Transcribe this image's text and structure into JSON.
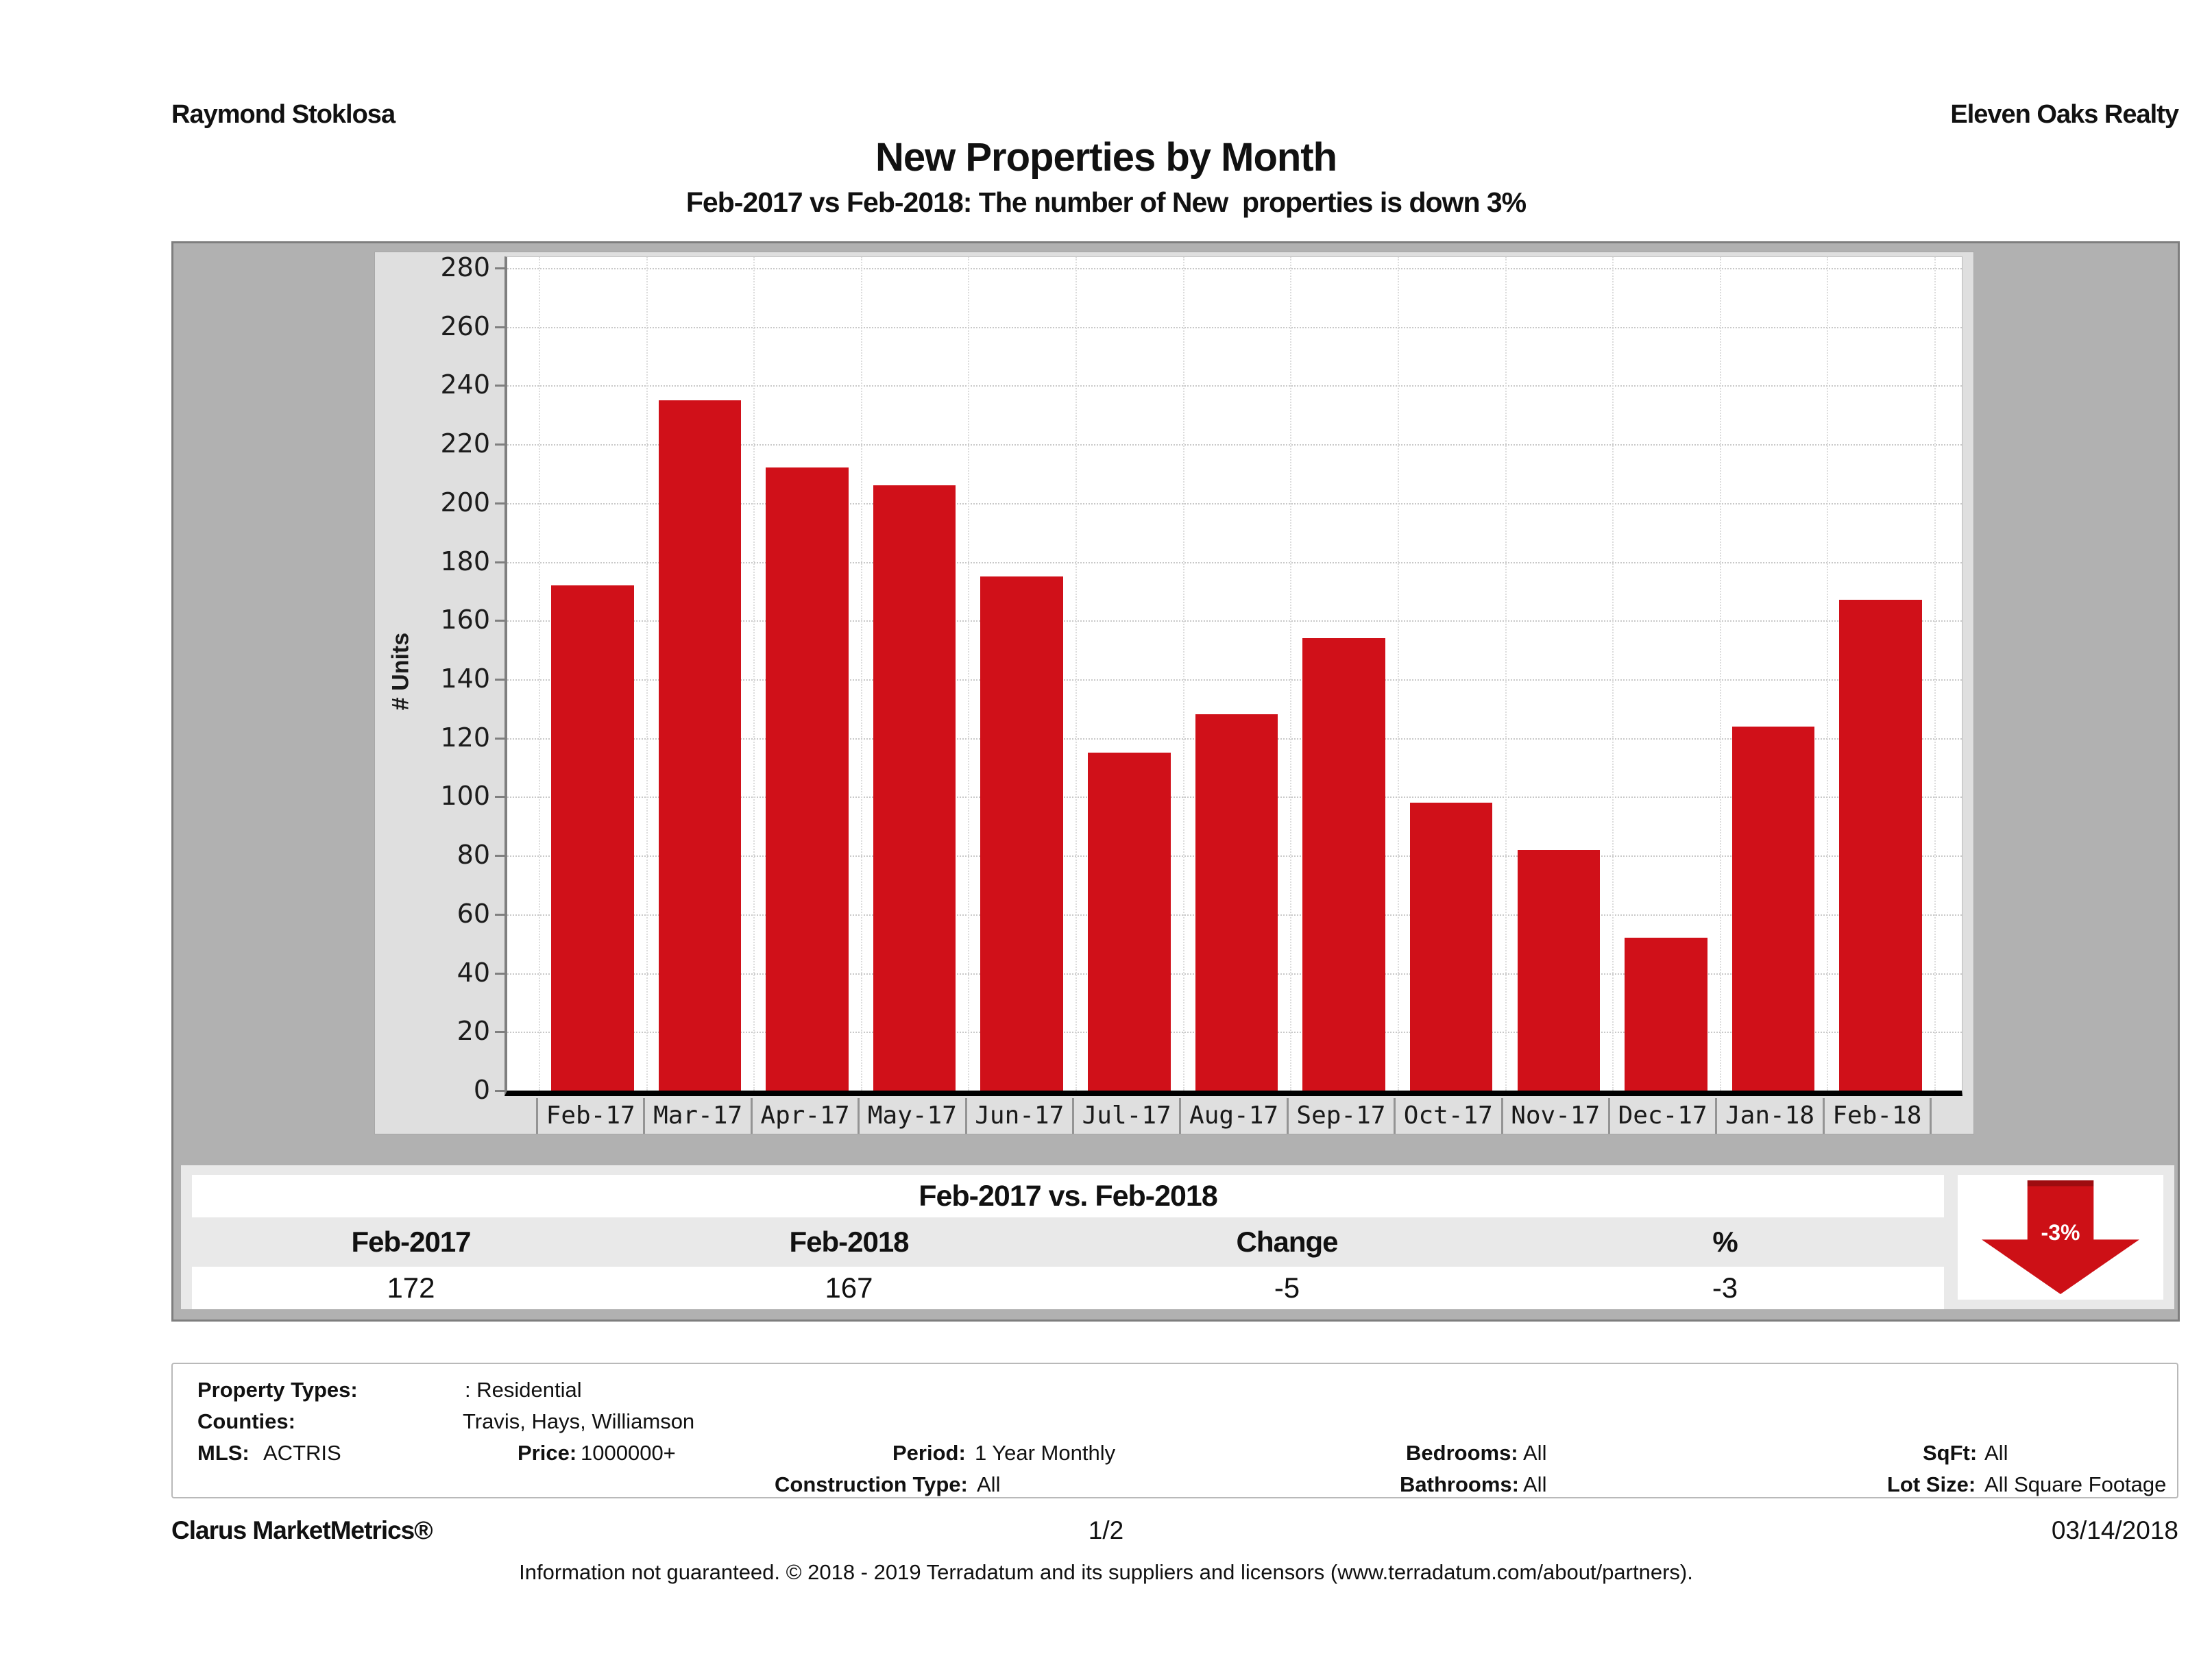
{
  "header": {
    "agent": "Raymond Stoklosa",
    "company": "Eleven Oaks Realty"
  },
  "title": "New Properties by Month",
  "subtitle": "Feb-2017 vs Feb-2018: The number of New  properties is down 3%",
  "chart_data": {
    "type": "bar",
    "title": "New Properties by Month",
    "categories": [
      "Feb-17",
      "Mar-17",
      "Apr-17",
      "May-17",
      "Jun-17",
      "Jul-17",
      "Aug-17",
      "Sep-17",
      "Oct-17",
      "Nov-17",
      "Dec-17",
      "Jan-18",
      "Feb-18"
    ],
    "values": [
      172,
      235,
      212,
      206,
      175,
      115,
      128,
      154,
      98,
      82,
      52,
      124,
      167
    ],
    "xlabel": "",
    "ylabel": "# Units",
    "ylim": [
      0,
      280
    ],
    "ytick_step": 20,
    "grid": true,
    "legend": "none",
    "bar_color": "#d01019"
  },
  "comparison_table": {
    "title": "Feb-2017 vs. Feb-2018",
    "columns": [
      "Feb-2017",
      "Feb-2018",
      "Change",
      "%"
    ],
    "values": [
      "172",
      "167",
      "-5",
      "-3"
    ],
    "arrow_label": "-3%",
    "arrow_direction": "down",
    "arrow_color": "#cd1016"
  },
  "filters": {
    "property_types_label": "Property Types:",
    "property_types_value": ": Residential",
    "counties_label": "Counties:",
    "counties_value": "Travis, Hays, Williamson",
    "mls_label": "MLS:",
    "mls_value": "ACTRIS",
    "price_label": "Price:",
    "price_value": "1000000+",
    "period_label": "Period:",
    "period_value": "1 Year Monthly",
    "construction_label": "Construction Type:",
    "construction_value": "All",
    "bedrooms_label": "Bedrooms:",
    "bedrooms_value": "All",
    "bathrooms_label": "Bathrooms:",
    "bathrooms_value": "All",
    "sqft_label": "SqFt:",
    "sqft_value": "All",
    "lotsize_label": "Lot Size:",
    "lotsize_value": "All Square Footage"
  },
  "footer": {
    "product": "Clarus MarketMetrics®",
    "page": "1/2",
    "date": "03/14/2018",
    "disclaimer": "Information not guaranteed. © 2018 - 2019 Terradatum and its suppliers and licensors (www.terradatum.com/about/partners)."
  }
}
